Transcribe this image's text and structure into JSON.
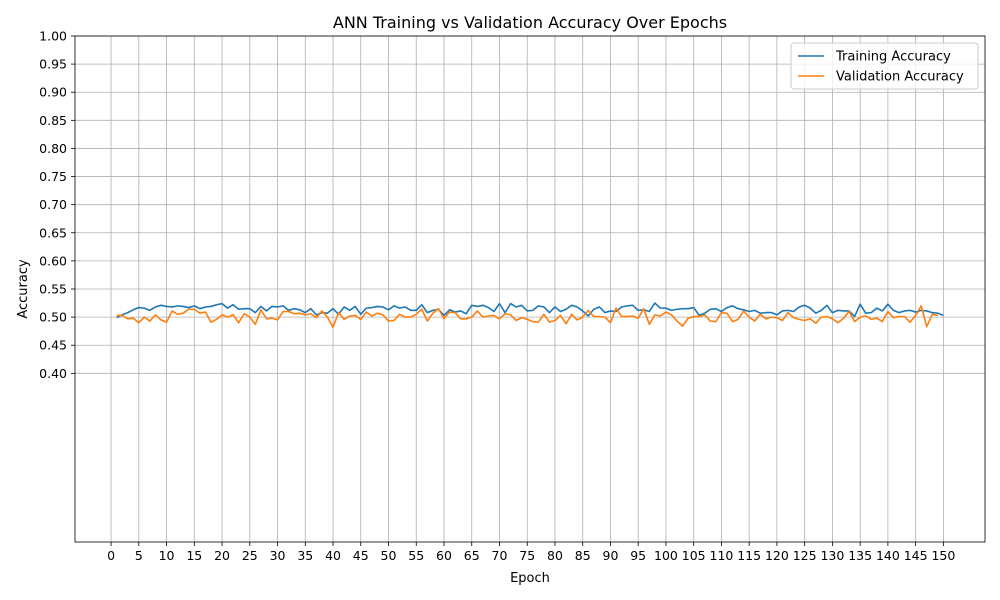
{
  "chart_data": {
    "type": "line",
    "title": "ANN Training vs Validation Accuracy Over Epochs",
    "xlabel": "Epoch",
    "ylabel": "Accuracy",
    "xlim": [
      -6.5,
      157.5
    ],
    "ylim": [
      0.1,
      1.0
    ],
    "xticks": [
      0,
      5,
      10,
      15,
      20,
      25,
      30,
      35,
      40,
      45,
      50,
      55,
      60,
      65,
      70,
      75,
      80,
      85,
      90,
      95,
      100,
      105,
      110,
      115,
      120,
      125,
      130,
      135,
      140,
      145,
      150
    ],
    "yticks": [
      0.4,
      0.45,
      0.5,
      0.55,
      0.6,
      0.65,
      0.7,
      0.75,
      0.8,
      0.85,
      0.9,
      0.95,
      1.0
    ],
    "xticklabels": [
      "0",
      "5",
      "10",
      "15",
      "20",
      "25",
      "30",
      "35",
      "40",
      "45",
      "50",
      "55",
      "60",
      "65",
      "70",
      "75",
      "80",
      "85",
      "90",
      "95",
      "100",
      "105",
      "110",
      "115",
      "120",
      "125",
      "130",
      "135",
      "140",
      "145",
      "150"
    ],
    "yticklabels": [
      "0.40",
      "0.45",
      "0.50",
      "0.55",
      "0.60",
      "0.65",
      "0.70",
      "0.75",
      "0.80",
      "0.85",
      "0.90",
      "0.95",
      "1.00"
    ],
    "grid": true,
    "legend_position": "top-right",
    "series": [
      {
        "name": "Training Accuracy",
        "color": "#1f77b4",
        "x_start": 1,
        "values": [
          0.499,
          0.504,
          0.508,
          0.513,
          0.517,
          0.516,
          0.512,
          0.518,
          0.521,
          0.519,
          0.518,
          0.52,
          0.519,
          0.517,
          0.52,
          0.515,
          0.518,
          0.519,
          0.522,
          0.524,
          0.516,
          0.522,
          0.514,
          0.515,
          0.515,
          0.508,
          0.519,
          0.511,
          0.519,
          0.518,
          0.52,
          0.512,
          0.515,
          0.513,
          0.508,
          0.515,
          0.504,
          0.508,
          0.507,
          0.515,
          0.505,
          0.518,
          0.512,
          0.519,
          0.505,
          0.516,
          0.517,
          0.519,
          0.518,
          0.513,
          0.52,
          0.516,
          0.518,
          0.512,
          0.512,
          0.522,
          0.508,
          0.512,
          0.514,
          0.503,
          0.513,
          0.509,
          0.511,
          0.506,
          0.521,
          0.519,
          0.521,
          0.517,
          0.51,
          0.524,
          0.508,
          0.524,
          0.518,
          0.521,
          0.511,
          0.512,
          0.52,
          0.518,
          0.508,
          0.518,
          0.51,
          0.514,
          0.521,
          0.518,
          0.511,
          0.502,
          0.514,
          0.518,
          0.508,
          0.511,
          0.51,
          0.518,
          0.52,
          0.521,
          0.512,
          0.513,
          0.51,
          0.525,
          0.516,
          0.516,
          0.512,
          0.514,
          0.515,
          0.515,
          0.517,
          0.503,
          0.507,
          0.514,
          0.515,
          0.51,
          0.517,
          0.52,
          0.515,
          0.513,
          0.51,
          0.512,
          0.507,
          0.508,
          0.508,
          0.504,
          0.511,
          0.512,
          0.51,
          0.518,
          0.521,
          0.516,
          0.507,
          0.512,
          0.521,
          0.508,
          0.512,
          0.511,
          0.511,
          0.501,
          0.523,
          0.507,
          0.508,
          0.516,
          0.511,
          0.523,
          0.512,
          0.508,
          0.511,
          0.512,
          0.509,
          0.512,
          0.511,
          0.508,
          0.507,
          0.503
        ]
      },
      {
        "name": "Validation Accuracy",
        "color": "#ff7f0e",
        "x_start": 1,
        "values": [
          0.503,
          0.503,
          0.497,
          0.498,
          0.49,
          0.5,
          0.493,
          0.504,
          0.495,
          0.491,
          0.511,
          0.505,
          0.507,
          0.514,
          0.514,
          0.507,
          0.509,
          0.491,
          0.496,
          0.504,
          0.5,
          0.504,
          0.49,
          0.506,
          0.5,
          0.487,
          0.513,
          0.497,
          0.498,
          0.495,
          0.51,
          0.51,
          0.506,
          0.507,
          0.504,
          0.506,
          0.499,
          0.511,
          0.5,
          0.482,
          0.508,
          0.496,
          0.502,
          0.503,
          0.496,
          0.509,
          0.502,
          0.507,
          0.504,
          0.493,
          0.494,
          0.505,
          0.5,
          0.5,
          0.505,
          0.514,
          0.493,
          0.507,
          0.515,
          0.497,
          0.509,
          0.508,
          0.497,
          0.497,
          0.5,
          0.511,
          0.5,
          0.502,
          0.503,
          0.497,
          0.506,
          0.504,
          0.494,
          0.499,
          0.496,
          0.492,
          0.491,
          0.505,
          0.491,
          0.494,
          0.503,
          0.488,
          0.505,
          0.495,
          0.5,
          0.512,
          0.501,
          0.501,
          0.5,
          0.49,
          0.516,
          0.501,
          0.501,
          0.502,
          0.498,
          0.515,
          0.487,
          0.504,
          0.502,
          0.509,
          0.504,
          0.493,
          0.484,
          0.498,
          0.501,
          0.501,
          0.504,
          0.493,
          0.492,
          0.508,
          0.507,
          0.492,
          0.496,
          0.511,
          0.5,
          0.493,
          0.505,
          0.497,
          0.5,
          0.499,
          0.494,
          0.508,
          0.499,
          0.496,
          0.494,
          0.497,
          0.489,
          0.5,
          0.501,
          0.497,
          0.49,
          0.498,
          0.51,
          0.492,
          0.5,
          0.502,
          0.496,
          0.498,
          0.492,
          0.51,
          0.499,
          0.501,
          0.501,
          0.491,
          0.503,
          0.52,
          0.483,
          0.505,
          0.503
        ]
      }
    ]
  }
}
